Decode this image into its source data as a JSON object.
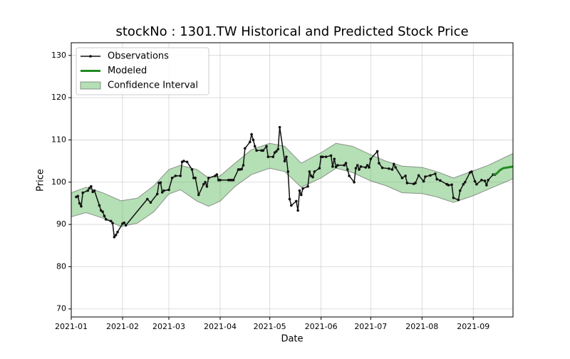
{
  "chart_data": {
    "type": "line",
    "title": "stockNo : 1301.TW Historical and Predicted Stock Price",
    "xlabel": "Date",
    "ylabel": "Price",
    "xlim": [
      "2021-01-01",
      "2021-09-25"
    ],
    "xticks": [
      {
        "value": "2021-01-01",
        "label": "2021-01"
      },
      {
        "value": "2021-02-01",
        "label": "2021-02"
      },
      {
        "value": "2021-03-01",
        "label": "2021-03"
      },
      {
        "value": "2021-04-01",
        "label": "2021-04"
      },
      {
        "value": "2021-05-01",
        "label": "2021-05"
      },
      {
        "value": "2021-06-01",
        "label": "2021-06"
      },
      {
        "value": "2021-07-01",
        "label": "2021-07"
      },
      {
        "value": "2021-08-01",
        "label": "2021-08"
      },
      {
        "value": "2021-09-01",
        "label": "2021-09"
      }
    ],
    "ylim": [
      68.1,
      133.0
    ],
    "yticks": [
      70,
      80,
      90,
      100,
      110,
      120,
      130
    ],
    "grid": true,
    "legend": "upper left",
    "series": [
      {
        "name": "Observations",
        "color": "#111111",
        "x": [
          "2021-01-04",
          "2021-01-05",
          "2021-01-06",
          "2021-01-07",
          "2021-01-08",
          "2021-01-11",
          "2021-01-12",
          "2021-01-13",
          "2021-01-14",
          "2021-01-15",
          "2021-01-18",
          "2021-01-19",
          "2021-01-20",
          "2021-01-21",
          "2021-01-22",
          "2021-01-25",
          "2021-01-26",
          "2021-01-27",
          "2021-01-28",
          "2021-01-29",
          "2021-02-01",
          "2021-02-02",
          "2021-02-03",
          "2021-02-16",
          "2021-02-18",
          "2021-02-22",
          "2021-02-23",
          "2021-02-24",
          "2021-02-25",
          "2021-02-26",
          "2021-03-01",
          "2021-03-03",
          "2021-03-05",
          "2021-03-08",
          "2021-03-09",
          "2021-03-10",
          "2021-03-12",
          "2021-03-15",
          "2021-03-16",
          "2021-03-17",
          "2021-03-19",
          "2021-03-22",
          "2021-03-23",
          "2021-03-24",
          "2021-03-25",
          "2021-03-29",
          "2021-03-30",
          "2021-03-31",
          "2021-04-01",
          "2021-04-06",
          "2021-04-07",
          "2021-04-08",
          "2021-04-09",
          "2021-04-12",
          "2021-04-13",
          "2021-04-14",
          "2021-04-15",
          "2021-04-16",
          "2021-04-19",
          "2021-04-20",
          "2021-04-21",
          "2021-04-22",
          "2021-04-23",
          "2021-04-26",
          "2021-04-27",
          "2021-04-29",
          "2021-04-30",
          "2021-05-03",
          "2021-05-04",
          "2021-05-05",
          "2021-05-06",
          "2021-05-07",
          "2021-05-10",
          "2021-05-11",
          "2021-05-12",
          "2021-05-13",
          "2021-05-14",
          "2021-05-17",
          "2021-05-18",
          "2021-05-19",
          "2021-05-20",
          "2021-05-21",
          "2021-05-24",
          "2021-05-25",
          "2021-05-26",
          "2021-05-27",
          "2021-05-28",
          "2021-05-31",
          "2021-06-01",
          "2021-06-02",
          "2021-06-04",
          "2021-06-07",
          "2021-06-08",
          "2021-06-09",
          "2021-06-10",
          "2021-06-11",
          "2021-06-15",
          "2021-06-16",
          "2021-06-17",
          "2021-06-18",
          "2021-06-21",
          "2021-06-22",
          "2021-06-23",
          "2021-06-24",
          "2021-06-25",
          "2021-06-28",
          "2021-06-29",
          "2021-06-30",
          "2021-07-01",
          "2021-07-05",
          "2021-07-06",
          "2021-07-08",
          "2021-07-12",
          "2021-07-14",
          "2021-07-15",
          "2021-07-16",
          "2021-07-20",
          "2021-07-22",
          "2021-07-23",
          "2021-07-27",
          "2021-07-28",
          "2021-07-30",
          "2021-08-02",
          "2021-08-03",
          "2021-08-06",
          "2021-08-09",
          "2021-08-10",
          "2021-08-12",
          "2021-08-16",
          "2021-08-17",
          "2021-08-19",
          "2021-08-20",
          "2021-08-23",
          "2021-08-24",
          "2021-08-26",
          "2021-08-27",
          "2021-08-30",
          "2021-08-31",
          "2021-09-02",
          "2021-09-03",
          "2021-09-06",
          "2021-09-08",
          "2021-09-09",
          "2021-09-10",
          "2021-09-13",
          "2021-09-14"
        ],
        "values": [
          96.5,
          96.7,
          95.0,
          94.3,
          97.5,
          98.0,
          98.6,
          99.0,
          97.7,
          98.0,
          94.5,
          93.3,
          93.0,
          92.0,
          91.2,
          90.8,
          90.3,
          87.0,
          87.5,
          88.2,
          90.2,
          90.4,
          89.8,
          96.0,
          95.2,
          97.2,
          99.8,
          99.9,
          97.6,
          98.0,
          98.2,
          101.0,
          101.5,
          101.5,
          104.8,
          105.0,
          104.8,
          103.0,
          101.0,
          101.0,
          97.0,
          99.5,
          100.0,
          99.0,
          101.0,
          101.5,
          101.8,
          100.5,
          100.5,
          100.5,
          100.5,
          100.5,
          100.5,
          103.0,
          103.0,
          103.1,
          104.0,
          108.0,
          109.5,
          111.3,
          110.0,
          108.5,
          107.5,
          107.5,
          107.5,
          108.5,
          106.0,
          106.0,
          107.0,
          107.3,
          107.8,
          113.0,
          105.0,
          106.0,
          102.5,
          96.0,
          94.5,
          95.5,
          93.3,
          98.0,
          97.0,
          98.5,
          99.0,
          102.5,
          101.5,
          101.2,
          102.5,
          103.3,
          106.0,
          106.0,
          106.0,
          106.3,
          103.7,
          105.5,
          103.6,
          104.0,
          104.0,
          104.5,
          103.0,
          101.5,
          100.0,
          103.3,
          104.0,
          103.0,
          103.7,
          103.5,
          104.0,
          103.5,
          105.5,
          107.3,
          104.5,
          103.4,
          103.2,
          103.0,
          104.3,
          103.5,
          101.0,
          101.5,
          99.8,
          99.6,
          99.8,
          101.6,
          100.2,
          101.3,
          101.6,
          102.0,
          100.7,
          100.4,
          99.5,
          99.3,
          99.4,
          96.3,
          95.8,
          98.0,
          99.5,
          100.0,
          102.3,
          102.5,
          100.2,
          99.5,
          100.5,
          100.3,
          99.3,
          100.5,
          101.8,
          101.8
        ]
      },
      {
        "name": "Modeled",
        "color": "#228b22",
        "x": [
          "2021-09-13",
          "2021-09-15",
          "2021-09-17",
          "2021-09-19",
          "2021-09-22",
          "2021-09-25"
        ],
        "values": [
          101.8,
          102.0,
          102.8,
          103.3,
          103.5,
          103.7
        ]
      },
      {
        "name": "Confidence Interval",
        "color": "#5cb85c",
        "x": [
          "2021-01-01",
          "2021-01-10",
          "2021-01-20",
          "2021-01-31",
          "2021-02-10",
          "2021-02-20",
          "2021-03-01",
          "2021-03-08",
          "2021-03-18",
          "2021-03-25",
          "2021-04-01",
          "2021-04-10",
          "2021-04-20",
          "2021-05-01",
          "2021-05-10",
          "2021-05-20",
          "2021-06-01",
          "2021-06-10",
          "2021-06-20",
          "2021-07-01",
          "2021-07-10",
          "2021-07-20",
          "2021-08-01",
          "2021-08-10",
          "2021-08-20",
          "2021-09-01",
          "2021-09-10",
          "2021-09-25"
        ],
        "upper": [
          97.5,
          98.8,
          97.5,
          95.6,
          96.2,
          99.2,
          103.0,
          104.0,
          103.0,
          101.0,
          101.5,
          104.5,
          107.7,
          109.2,
          108.5,
          104.5,
          107.0,
          109.2,
          108.5,
          106.5,
          105.0,
          103.8,
          103.5,
          102.5,
          101.0,
          102.7,
          104.0,
          106.8
        ],
        "lower": [
          91.8,
          92.8,
          91.5,
          89.5,
          90.3,
          93.0,
          97.2,
          98.2,
          95.5,
          94.3,
          95.5,
          99.0,
          101.8,
          103.3,
          102.5,
          98.8,
          101.0,
          103.3,
          102.3,
          100.3,
          99.2,
          97.5,
          97.3,
          96.5,
          95.2,
          96.8,
          98.3,
          100.8
        ]
      }
    ]
  }
}
